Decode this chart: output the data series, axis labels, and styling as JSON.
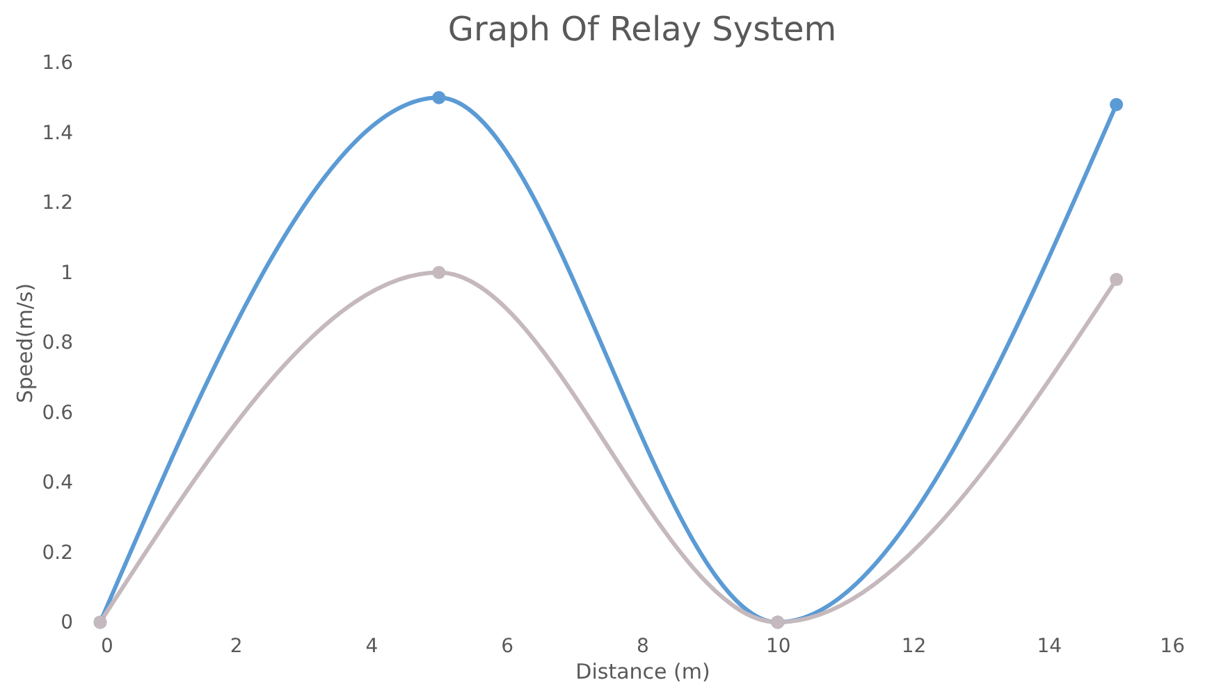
{
  "chart_data": {
    "type": "line",
    "title": "Graph Of Relay System",
    "xlabel": "Distance (m)",
    "ylabel": "Speed(m/s)",
    "x": [
      0,
      5,
      10,
      15
    ],
    "series": [
      {
        "color": "#5b9bd5",
        "values": [
          0,
          1.5,
          0,
          1.48
        ]
      },
      {
        "color": "#c5b9bd",
        "values": [
          0,
          1,
          0,
          0.98
        ]
      }
    ],
    "xlim": [
      0,
      16
    ],
    "xticks": [
      0,
      2,
      4,
      6,
      8,
      10,
      12,
      14,
      16
    ],
    "ylim": [
      0,
      1.6
    ],
    "yticks": [
      0,
      0.2,
      0.4,
      0.6,
      0.8,
      1,
      1.2,
      1.4,
      1.6
    ],
    "grid": false,
    "legend": false,
    "marker": "circle",
    "line_style": "solid"
  }
}
